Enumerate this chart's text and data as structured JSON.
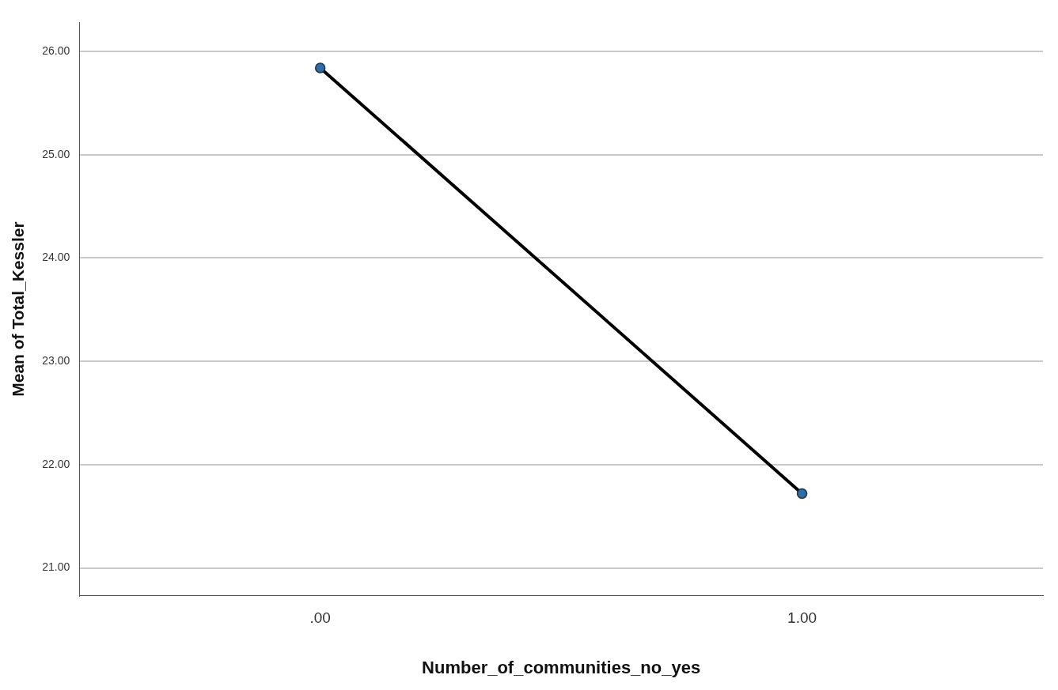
{
  "chart_data": {
    "type": "line",
    "xlabel": "Number_of_communities_no_yes",
    "ylabel": "Mean of Total_Kessler",
    "categories": [
      ".00",
      "1.00"
    ],
    "series": [
      {
        "color": "#000000",
        "values": [
          25.84,
          21.72
        ]
      }
    ],
    "ylim": [
      20.73,
      26.28
    ],
    "yticks": [
      {
        "value": 21,
        "label": "21.00"
      },
      {
        "value": 22,
        "label": "22.00"
      },
      {
        "value": 23,
        "label": "23.00"
      },
      {
        "value": 24,
        "label": "24.00"
      },
      {
        "value": 25,
        "label": "25.00"
      },
      {
        "value": 26,
        "label": "26.00"
      }
    ],
    "grid": "y",
    "marker": "circle",
    "line_style": "solid",
    "legend": false
  }
}
